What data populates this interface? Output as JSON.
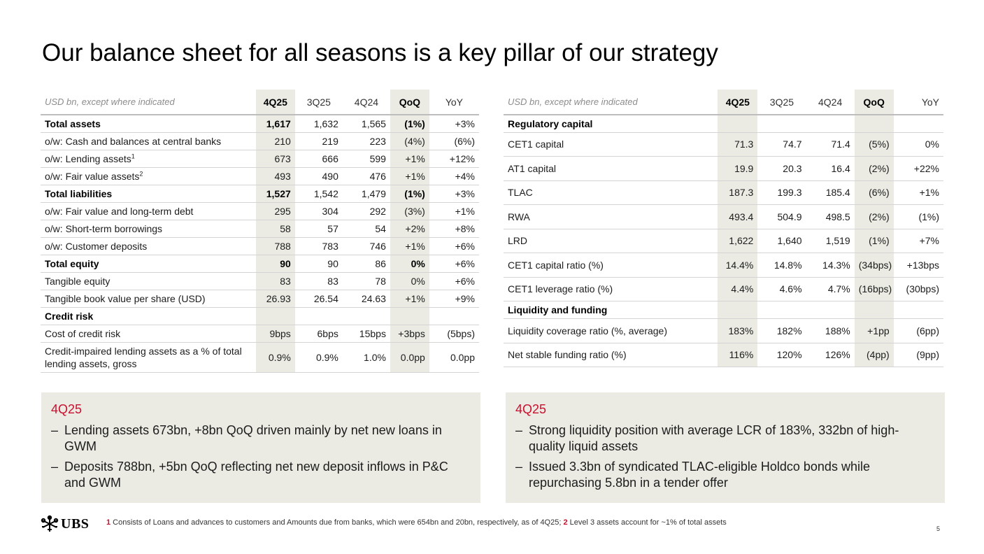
{
  "title": "Our balance sheet for all seasons is a key pillar of our strategy",
  "left_table": {
    "header_label": "USD bn, except where indicated",
    "columns": [
      "4Q25",
      "3Q25",
      "4Q24",
      "QoQ",
      "YoY"
    ],
    "rows": [
      {
        "label": "Total assets",
        "values": [
          "1,617",
          "1,632",
          "1,565",
          "(1%)",
          "+3%"
        ]
      },
      {
        "label": "o/w: Cash and balances at central banks",
        "values": [
          "210",
          "219",
          "223",
          "(4%)",
          "(6%)"
        ]
      },
      {
        "label": "o/w: Lending assets",
        "sup": "1",
        "values": [
          "673",
          "666",
          "599",
          "+1%",
          "+12%"
        ]
      },
      {
        "label": "o/w: Fair value assets",
        "sup": "2",
        "values": [
          "493",
          "490",
          "476",
          "+1%",
          "+4%"
        ]
      },
      {
        "label": "Total liabilities",
        "values": [
          "1,527",
          "1,542",
          "1,479",
          "(1%)",
          "+3%"
        ]
      },
      {
        "label": "o/w: Fair value and long-term debt",
        "values": [
          "295",
          "304",
          "292",
          "(3%)",
          "+1%"
        ]
      },
      {
        "label": "o/w: Short-term borrowings",
        "values": [
          "58",
          "57",
          "54",
          "+2%",
          "+8%"
        ]
      },
      {
        "label": "o/w: Customer deposits",
        "values": [
          "788",
          "783",
          "746",
          "+1%",
          "+6%"
        ]
      },
      {
        "label": "Total equity",
        "values": [
          "90",
          "90",
          "86",
          "0%",
          "+6%"
        ]
      },
      {
        "label": "Tangible equity",
        "values": [
          "83",
          "83",
          "78",
          "0%",
          "+6%"
        ]
      },
      {
        "label": "Tangible book value per share (USD)",
        "values": [
          "26.93",
          "26.54",
          "24.63",
          "+1%",
          "+9%"
        ]
      },
      {
        "label": "Credit risk"
      },
      {
        "label": "Cost of credit risk",
        "values": [
          "9bps",
          "6bps",
          "15bps",
          "+3bps",
          "(5bps)"
        ]
      },
      {
        "label": "Credit-impaired lending assets as a % of total lending assets, gross",
        "values": [
          "0.9%",
          "0.9%",
          "1.0%",
          "0.0pp",
          "0.0pp"
        ]
      }
    ]
  },
  "right_table": {
    "header_label": "USD bn, except where indicated",
    "columns": [
      "4Q25",
      "3Q25",
      "4Q24",
      "QoQ",
      "YoY"
    ],
    "rows": [
      {
        "label": "Regulatory capital"
      },
      {
        "label": "CET1 capital",
        "values": [
          "71.3",
          "74.7",
          "71.4",
          "(5%)",
          "0%"
        ]
      },
      {
        "label": "AT1 capital",
        "values": [
          "19.9",
          "20.3",
          "16.4",
          "(2%)",
          "+22%"
        ]
      },
      {
        "label": "TLAC",
        "values": [
          "187.3",
          "199.3",
          "185.4",
          "(6%)",
          "+1%"
        ]
      },
      {
        "label": "RWA",
        "values": [
          "493.4",
          "504.9",
          "498.5",
          "(2%)",
          "(1%)"
        ]
      },
      {
        "label": "LRD",
        "values": [
          "1,622",
          "1,640",
          "1,519",
          "(1%)",
          "+7%"
        ]
      },
      {
        "label": "CET1 capital ratio (%)",
        "values": [
          "14.4%",
          "14.8%",
          "14.3%",
          "(34bps)",
          "+13bps"
        ]
      },
      {
        "label": "CET1 leverage ratio (%)",
        "values": [
          "4.4%",
          "4.6%",
          "4.7%",
          "(16bps)",
          "(30bps)"
        ]
      },
      {
        "label": "Liquidity and funding"
      },
      {
        "label": "Liquidity coverage ratio (%, average)",
        "values": [
          "183%",
          "182%",
          "188%",
          "+1pp",
          "(6pp)"
        ]
      },
      {
        "label": "Net stable funding ratio (%)",
        "values": [
          "116%",
          "120%",
          "126%",
          "(4pp)",
          "(9pp)"
        ]
      }
    ]
  },
  "notes_left": {
    "heading": "4Q25",
    "bullets": [
      "Lending assets 673bn, +8bn QoQ driven mainly by net new loans in GWM",
      "Deposits 788bn, +5bn QoQ reflecting net new deposit inflows in P&C and GWM"
    ]
  },
  "notes_right": {
    "heading": "4Q25",
    "bullets": [
      "Strong liquidity position with average LCR of 183%, 332bn of high-quality liquid assets",
      "Issued 3.3bn of syndicated TLAC-eligible Holdco bonds while repurchasing 5.8bn in a tender offer"
    ]
  },
  "footer": {
    "logo_text": "UBS",
    "footnote_1_num": "1",
    "footnote_1_text": " Consists of Loans and advances to customers and Amounts due from banks, which were 654bn and 20bn, respectively, as of 4Q25; ",
    "footnote_2_num": "2",
    "footnote_2_text": " Level 3 assets account for ~1% of total assets",
    "page_number": "5"
  },
  "colors": {
    "accent_red": "#c8102e",
    "shade": "#ebebe4"
  }
}
